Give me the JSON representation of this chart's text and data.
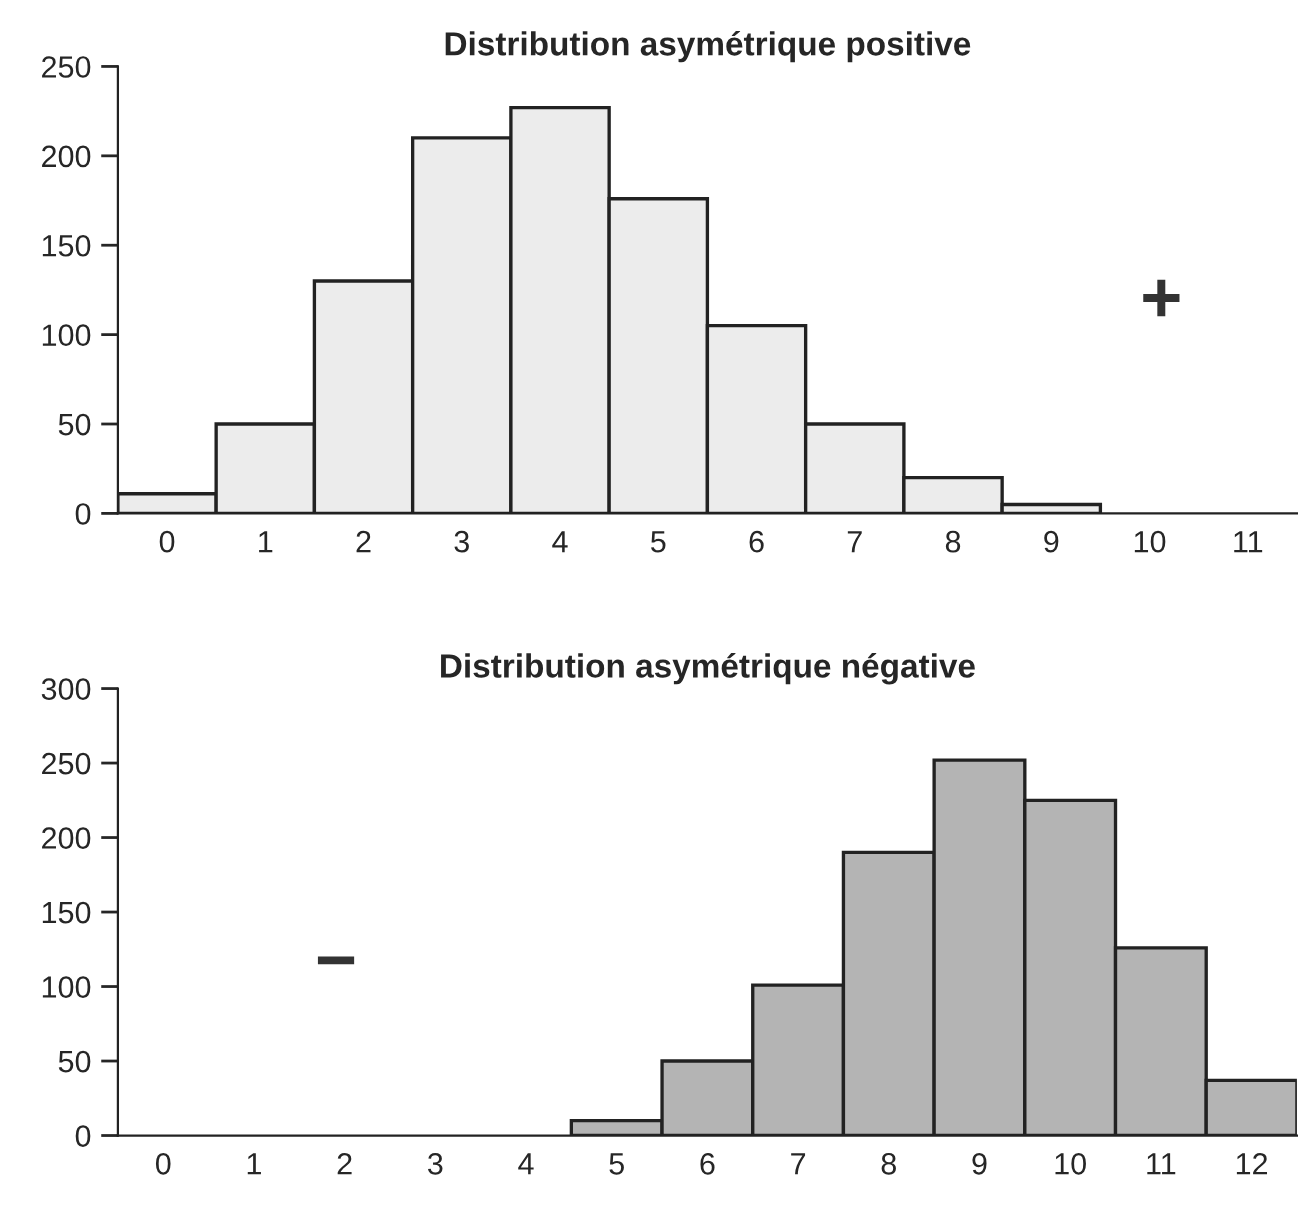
{
  "chart_data": [
    {
      "type": "bar",
      "title": "Distribution asymétrique positive",
      "categories": [
        "0",
        "1",
        "2",
        "3",
        "4",
        "5",
        "6",
        "7",
        "8",
        "9",
        "10",
        "11"
      ],
      "values": [
        11,
        50,
        130,
        210,
        227,
        176,
        105,
        50,
        20,
        5,
        0,
        0
      ],
      "color": "#ececec",
      "ylim": [
        0,
        250
      ],
      "yticks": [
        0,
        50,
        100,
        150,
        200,
        250
      ],
      "grid": false,
      "annotations": [
        "+"
      ]
    },
    {
      "type": "bar",
      "title": "Distribution asymétrique négative",
      "categories": [
        "0",
        "1",
        "2",
        "3",
        "4",
        "5",
        "6",
        "7",
        "8",
        "9",
        "10",
        "11",
        "12"
      ],
      "values": [
        0,
        0,
        0,
        0,
        0,
        10,
        50,
        101,
        190,
        252,
        225,
        126,
        37
      ],
      "color": "#b4b4b4",
      "ylim": [
        0,
        300
      ],
      "yticks": [
        0,
        50,
        100,
        150,
        200,
        250,
        300
      ],
      "grid": false,
      "annotations": [
        "−"
      ]
    }
  ]
}
